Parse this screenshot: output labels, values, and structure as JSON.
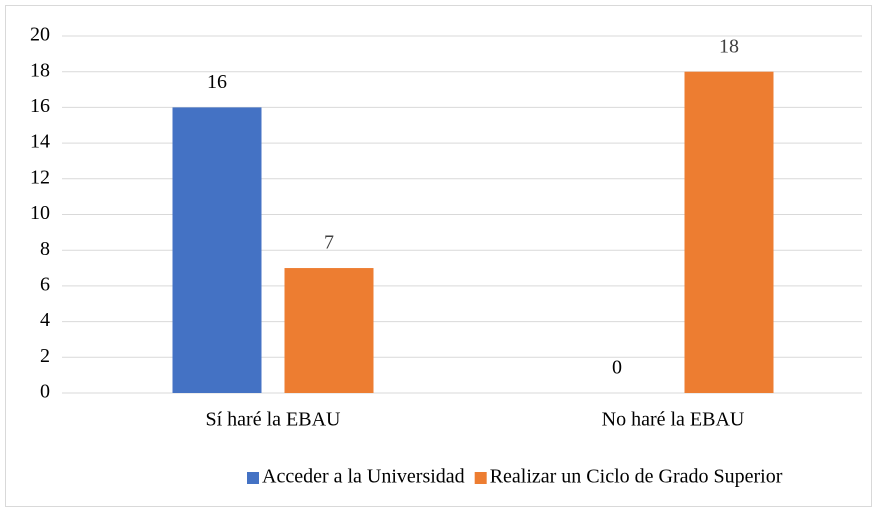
{
  "chart_data": {
    "type": "bar",
    "categories": [
      "Sí haré la EBAU",
      "No haré la EBAU"
    ],
    "series": [
      {
        "name": "Acceder a la Universidad",
        "color": "#4472c4",
        "values": [
          16,
          0
        ]
      },
      {
        "name": "Realizar un Ciclo de Grado Superior",
        "color": "#ed7d31",
        "values": [
          7,
          18
        ]
      }
    ],
    "ylim": [
      0,
      20
    ],
    "yticks": [
      0,
      2,
      4,
      6,
      8,
      10,
      12,
      14,
      16,
      18,
      20
    ],
    "grid": true,
    "legend": "bottom"
  }
}
